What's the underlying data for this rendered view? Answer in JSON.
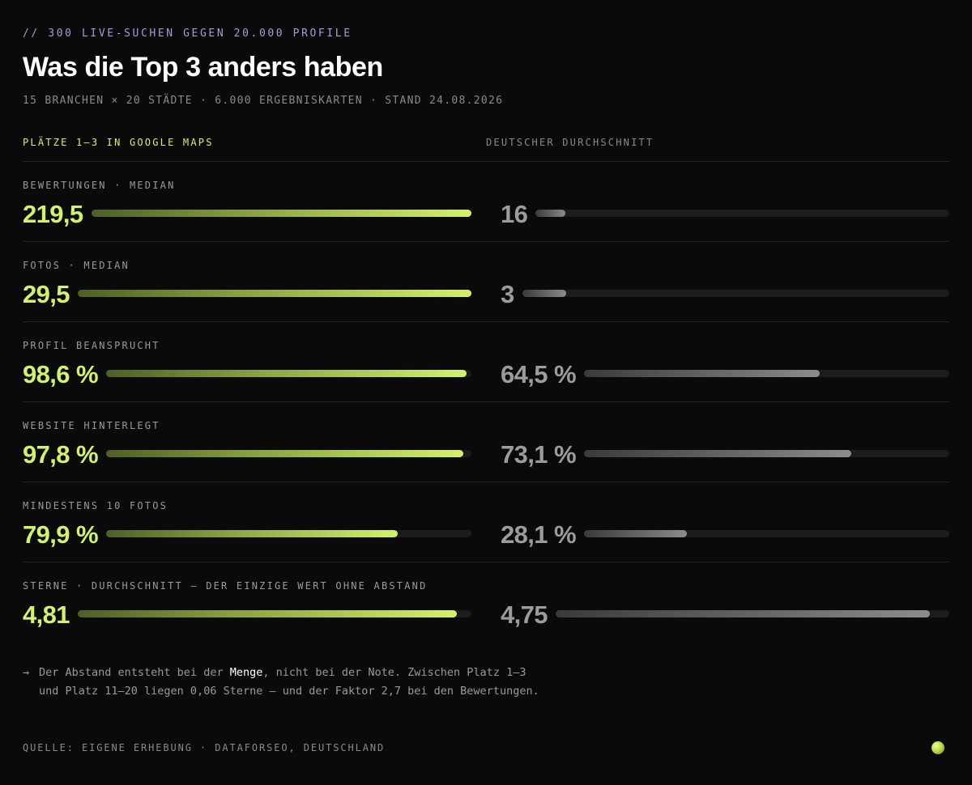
{
  "header": {
    "eyebrow": "// 300 LIVE-SUCHEN GEGEN 20.000 PROFILE",
    "title": "Was die Top 3 anders haben",
    "subtitle": "15 BRANCHEN × 20 STÄDTE · 6.000 ERGEBNISKARTEN · STAND 24.08.2026"
  },
  "columns": {
    "left": "PLÄTZE 1–3 IN GOOGLE MAPS",
    "right": "DEUTSCHER DURCHSCHNITT"
  },
  "chart_data": {
    "type": "bar",
    "series": [
      {
        "name": "PLÄTZE 1–3 IN GOOGLE MAPS",
        "color": "#d3f26a"
      },
      {
        "name": "DEUTSCHER DURCHSCHNITT",
        "color": "#9c9c9c"
      }
    ],
    "rows": [
      {
        "label": "BEWERTUNGEN · MEDIAN",
        "top_display": "219,5",
        "avg_display": "16",
        "top_value": 219.5,
        "avg_value": 16,
        "top_fill": 1.0,
        "avg_fill": 0.073
      },
      {
        "label": "FOTOS · MEDIAN",
        "top_display": "29,5",
        "avg_display": "3",
        "top_value": 29.5,
        "avg_value": 3,
        "top_fill": 1.0,
        "avg_fill": 0.102
      },
      {
        "label": "PROFIL BEANSPRUCHT",
        "top_display": "98,6 %",
        "avg_display": "64,5 %",
        "top_value": 98.6,
        "avg_value": 64.5,
        "top_fill": 0.986,
        "avg_fill": 0.645
      },
      {
        "label": "WEBSITE HINTERLEGT",
        "top_display": "97,8 %",
        "avg_display": "73,1 %",
        "top_value": 97.8,
        "avg_value": 73.1,
        "top_fill": 0.978,
        "avg_fill": 0.731
      },
      {
        "label": "MINDESTENS 10 FOTOS",
        "top_display": "79,9 %",
        "avg_display": "28,1 %",
        "top_value": 79.9,
        "avg_value": 28.1,
        "top_fill": 0.799,
        "avg_fill": 0.281
      },
      {
        "label": "STERNE · DURCHSCHNITT — DER EINZIGE WERT OHNE ABSTAND",
        "top_display": "4,81",
        "avg_display": "4,75",
        "top_value": 4.81,
        "avg_value": 4.75,
        "top_fill": 0.962,
        "avg_fill": 0.95
      }
    ]
  },
  "note": {
    "arrow": "→",
    "before": "Der Abstand entsteht bei der ",
    "highlight": "Menge",
    "after": ", nicht bei der Note. Zwischen Platz 1–3 und Platz 11–20 liegen 0,06 Sterne — und der Faktor 2,7 bei den Bewertungen."
  },
  "source": "QUELLE: EIGENE ERHEBUNG · DATAFORSEO, DEUTSCHLAND",
  "colors": {
    "background": "#0a0a0a",
    "accent": "#d3f26a",
    "muted": "#9c9c9c",
    "eyebrow": "#a99ad9"
  }
}
